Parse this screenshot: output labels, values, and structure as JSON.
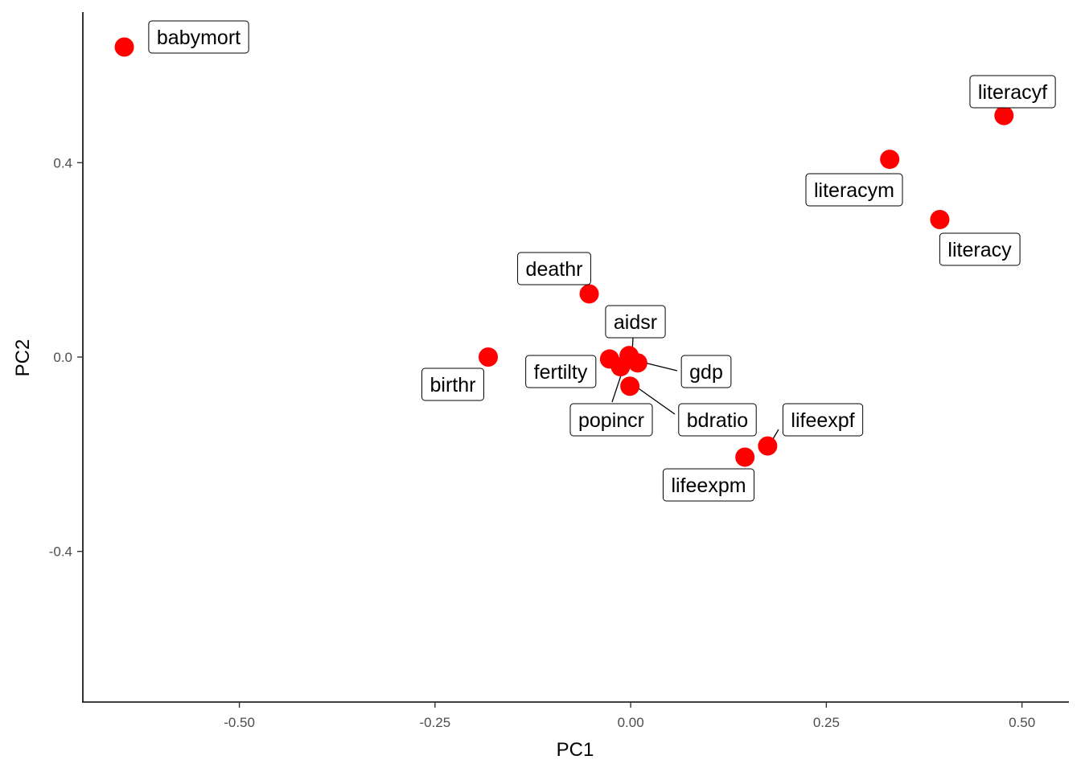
{
  "chart_data": {
    "type": "scatter",
    "title": "",
    "xlabel": "PC1",
    "ylabel": "PC2",
    "xlim": [
      -0.7,
      0.56
    ],
    "ylim": [
      -0.71,
      0.71
    ],
    "x_ticks": [
      -0.5,
      -0.25,
      0.0,
      0.25,
      0.5
    ],
    "x_tick_labels": [
      "-0.50",
      "-0.25",
      "0.00",
      "0.25",
      "0.50"
    ],
    "y_ticks": [
      -0.4,
      0.0,
      0.4
    ],
    "y_tick_labels": [
      "-0.4",
      "0.0",
      "0.4"
    ],
    "grid": false,
    "legend": "none",
    "point_color": "#ff0000",
    "points": [
      {
        "label": "babymort",
        "x": -0.647,
        "y": 0.638
      },
      {
        "label": "literacyf",
        "x": 0.477,
        "y": 0.497
      },
      {
        "label": "literacym",
        "x": 0.331,
        "y": 0.407
      },
      {
        "label": "literacy",
        "x": 0.395,
        "y": 0.283
      },
      {
        "label": "deathr",
        "x": -0.053,
        "y": 0.13
      },
      {
        "label": "birthr",
        "x": -0.182,
        "y": 0.0
      },
      {
        "label": "aidsr",
        "x": -0.002,
        "y": 0.003
      },
      {
        "label": "fertilty",
        "x": -0.027,
        "y": -0.004
      },
      {
        "label": "gdp",
        "x": 0.009,
        "y": -0.012
      },
      {
        "label": "popincr",
        "x": -0.013,
        "y": -0.02
      },
      {
        "label": "bdratio",
        "x": -0.001,
        "y": -0.06
      },
      {
        "label": "lifeexpf",
        "x": 0.175,
        "y": -0.183
      },
      {
        "label": "lifeexpm",
        "x": 0.146,
        "y": -0.206
      }
    ]
  }
}
